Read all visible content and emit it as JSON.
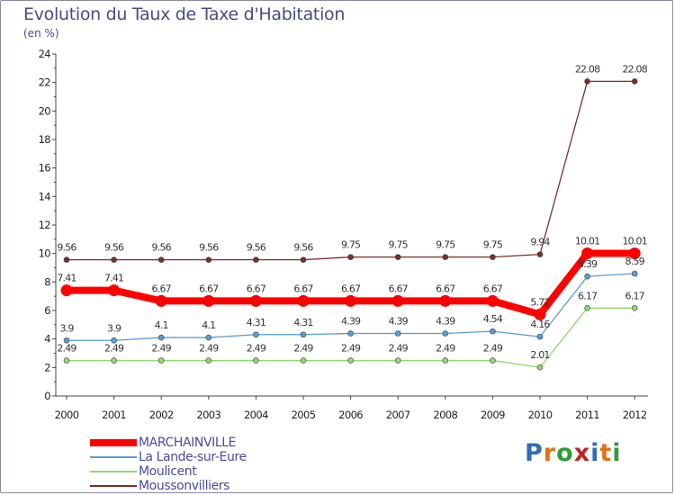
{
  "header": {
    "title": "Evolution du Taux de Taxe d'Habitation",
    "subtitle": "(en %)"
  },
  "logo": {
    "text": "Proxiti",
    "colors": [
      "#2f6db5",
      "#e0731a",
      "#2f9b3a",
      "#c22424",
      "#2f6db5",
      "#e0731a",
      "#2f9b3a"
    ]
  },
  "chart_data": {
    "type": "line",
    "title": "Evolution du Taux de Taxe d'Habitation",
    "ylabel": "(en %)",
    "xlabel": "",
    "x": [
      "2000",
      "2001",
      "2002",
      "2003",
      "2004",
      "2005",
      "2006",
      "2007",
      "2008",
      "2009",
      "2010",
      "2011",
      "2012"
    ],
    "ylim": [
      0,
      24
    ],
    "yticks": [
      0,
      2,
      4,
      6,
      8,
      10,
      12,
      14,
      16,
      18,
      20,
      22,
      24
    ],
    "grid": "none",
    "legend_position": "bottom-left",
    "series": [
      {
        "name": "MARCHAINVILLE",
        "color": "#ff0000",
        "emphasis": true,
        "values": [
          7.41,
          7.41,
          6.67,
          6.67,
          6.67,
          6.67,
          6.67,
          6.67,
          6.67,
          6.67,
          5.72,
          10.01,
          10.01
        ],
        "labels": [
          "7.41",
          "7.41",
          "6.67",
          "6.67",
          "6.67",
          "6.67",
          "6.67",
          "6.67",
          "6.67",
          "6.67",
          "5.72",
          "10.01",
          "10.01"
        ]
      },
      {
        "name": "La Lande-sur-Eure",
        "color": "#5b9bd5",
        "emphasis": false,
        "values": [
          3.9,
          3.9,
          4.1,
          4.1,
          4.31,
          4.31,
          4.39,
          4.39,
          4.39,
          4.54,
          4.16,
          8.39,
          8.59
        ],
        "labels": [
          "3.9",
          "3.9",
          "4.1",
          "4.1",
          "4.31",
          "4.31",
          "4.39",
          "4.39",
          "4.39",
          "4.54",
          "4.16",
          "8.39",
          "8.59"
        ]
      },
      {
        "name": "Moulicent",
        "color": "#90d870",
        "emphasis": false,
        "values": [
          2.49,
          2.49,
          2.49,
          2.49,
          2.49,
          2.49,
          2.49,
          2.49,
          2.49,
          2.49,
          2.01,
          6.17,
          6.17
        ],
        "labels": [
          "2.49",
          "2.49",
          "2.49",
          "2.49",
          "2.49",
          "2.49",
          "2.49",
          "2.49",
          "2.49",
          "2.49",
          "2.01",
          "6.17",
          "6.17"
        ]
      },
      {
        "name": "Moussonvilliers",
        "color": "#7a2e2e",
        "emphasis": false,
        "values": [
          9.56,
          9.56,
          9.56,
          9.56,
          9.56,
          9.56,
          9.75,
          9.75,
          9.75,
          9.75,
          9.94,
          22.08,
          22.08
        ],
        "labels": [
          "9.56",
          "9.56",
          "9.56",
          "9.56",
          "9.56",
          "9.56",
          "9.75",
          "9.75",
          "9.75",
          "9.75",
          "9.94",
          "22.08",
          "22.08"
        ]
      }
    ]
  }
}
